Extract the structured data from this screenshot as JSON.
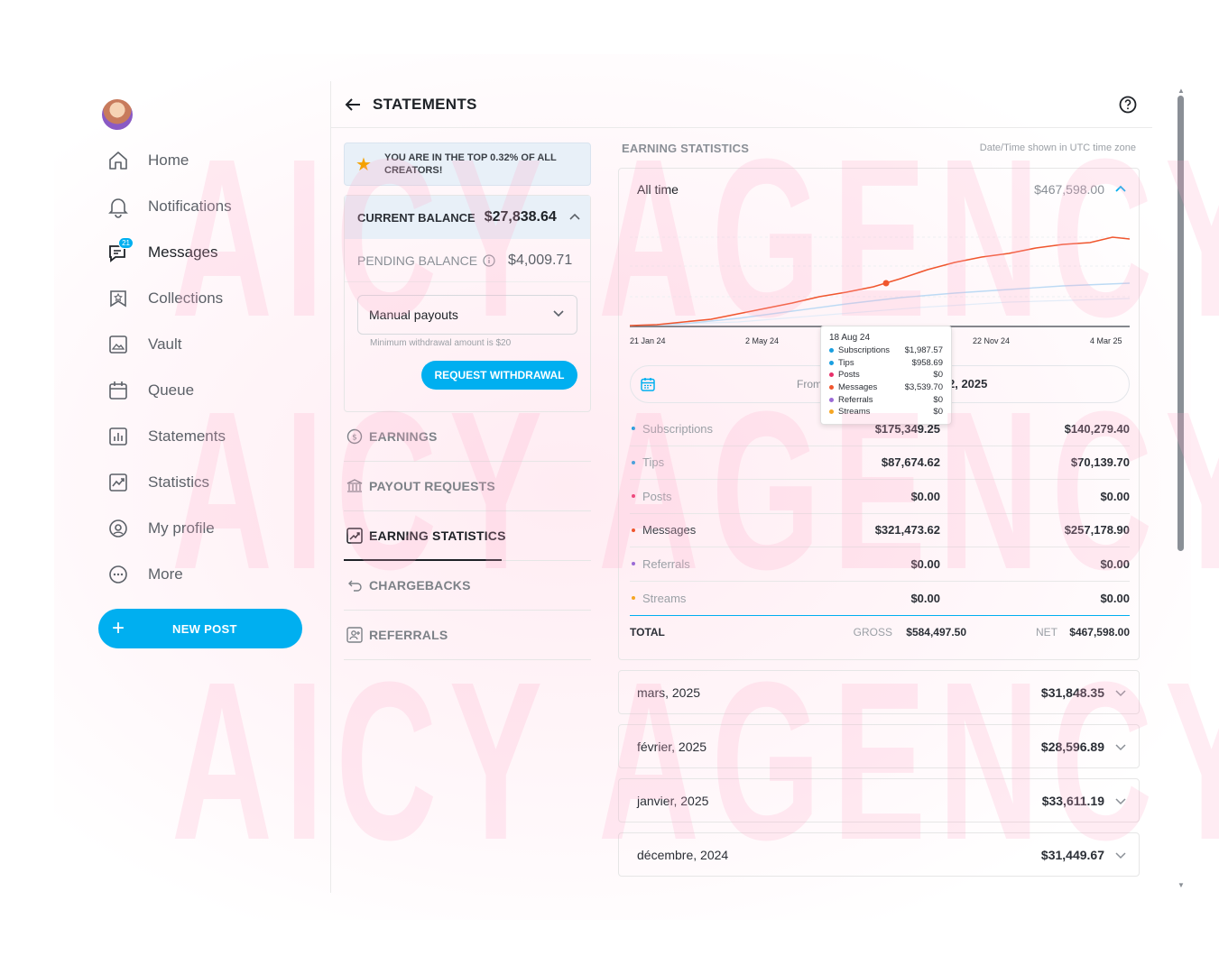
{
  "sidebar": {
    "items": [
      {
        "label": "Home",
        "icon": "home-icon"
      },
      {
        "label": "Notifications",
        "icon": "bell-icon"
      },
      {
        "label": "Messages",
        "icon": "messages-icon",
        "badge": "21"
      },
      {
        "label": "Collections",
        "icon": "collections-icon"
      },
      {
        "label": "Vault",
        "icon": "vault-icon"
      },
      {
        "label": "Queue",
        "icon": "calendar-icon"
      },
      {
        "label": "Statements",
        "icon": "statements-icon"
      },
      {
        "label": "Statistics",
        "icon": "statistics-icon"
      },
      {
        "label": "My profile",
        "icon": "profile-icon"
      },
      {
        "label": "More",
        "icon": "more-icon"
      }
    ],
    "new_post_label": "NEW POST"
  },
  "header": {
    "title": "STATEMENTS"
  },
  "left_panel": {
    "top_banner": "YOU ARE IN THE TOP 0.32% OF ALL CREATORS!",
    "current_balance_label": "CURRENT BALANCE",
    "current_balance_value": "$27,838.64",
    "pending_balance_label": "PENDING BALANCE",
    "pending_balance_value": "$4,009.71",
    "payout_mode": "Manual payouts",
    "min_withdrawal_hint": "Minimum withdrawal amount is $20",
    "request_withdrawal_label": "REQUEST WITHDRAWAL",
    "menu": [
      {
        "label": "EARNINGS"
      },
      {
        "label": "PAYOUT REQUESTS"
      },
      {
        "label": "EARNING STATISTICS"
      },
      {
        "label": "CHARGEBACKS"
      },
      {
        "label": "REFERRALS"
      }
    ]
  },
  "right_panel": {
    "heading": "EARNING STATISTICS",
    "timezone_note": "Date/Time shown in UTC time zone",
    "period_label": "All time",
    "period_total": "$467,598.00",
    "x_ticks": [
      "21 Jan 24",
      "2 May 24",
      "22 Nov 24",
      "4 Mar 25"
    ],
    "date_from_label": "From",
    "date_to_value": "2, 2025",
    "rows": [
      {
        "name": "Subscriptions",
        "gross": "$175,349.25",
        "net": "$140,279.40",
        "color": "#1a9fe0"
      },
      {
        "name": "Tips",
        "gross": "$87,674.62",
        "net": "$70,139.70",
        "color": "#1a9fe0"
      },
      {
        "name": "Posts",
        "gross": "$0.00",
        "net": "$0.00",
        "color": "#e8306a"
      },
      {
        "name": "Messages",
        "gross": "$321,473.62",
        "net": "$257,178.90",
        "color": "#f0562e"
      },
      {
        "name": "Referrals",
        "gross": "$0.00",
        "net": "$0.00",
        "color": "#9b6bd6"
      },
      {
        "name": "Streams",
        "gross": "$0.00",
        "net": "$0.00",
        "color": "#f5a623"
      }
    ],
    "total_label": "TOTAL",
    "gross_label": "GROSS",
    "gross_total": "$584,497.50",
    "net_label": "NET",
    "net_total": "$467,598.00",
    "tooltip": {
      "date": "18 Aug 24",
      "items": [
        {
          "name": "Subscriptions",
          "value": "$1,987.57",
          "color": "#1a9fe0"
        },
        {
          "name": "Tips",
          "value": "$958.69",
          "color": "#1a9fe0"
        },
        {
          "name": "Posts",
          "value": "$0",
          "color": "#e8306a"
        },
        {
          "name": "Messages",
          "value": "$3,539.70",
          "color": "#f0562e"
        },
        {
          "name": "Referrals",
          "value": "$0",
          "color": "#9b6bd6"
        },
        {
          "name": "Streams",
          "value": "$0",
          "color": "#f5a623"
        }
      ]
    },
    "months": [
      {
        "name": "mars, 2025",
        "value": "$31,848.35"
      },
      {
        "name": "février, 2025",
        "value": "$28,596.89"
      },
      {
        "name": "janvier, 2025",
        "value": "$33,611.19"
      },
      {
        "name": "décembre, 2024",
        "value": "$31,449.67"
      }
    ]
  },
  "watermark": "AICY AGENCY",
  "colors": {
    "accent": "#00aff0",
    "messages_line": "#f0562e",
    "subs_line": "#bcdaf4"
  }
}
